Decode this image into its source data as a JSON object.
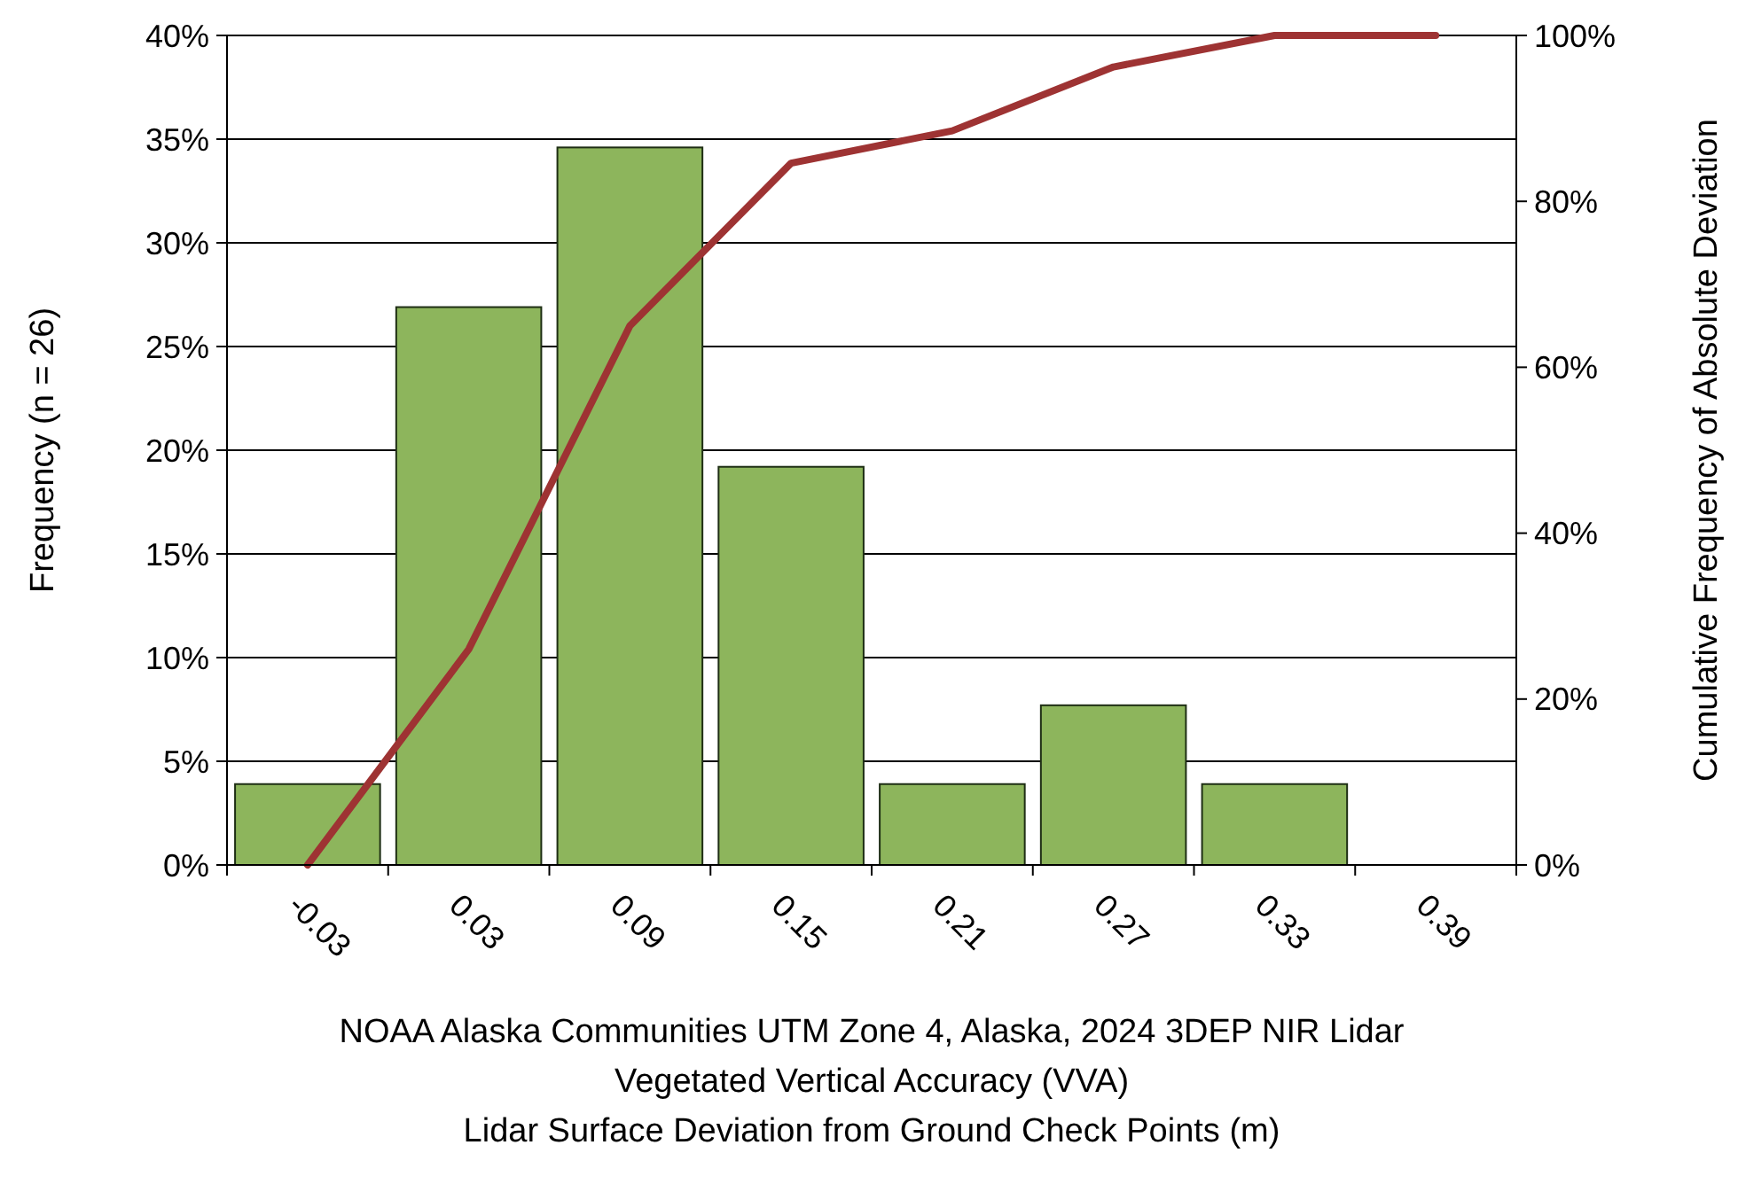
{
  "chart_data": {
    "type": "bar",
    "xlabel": "NOAA Alaska Communities UTM Zone 4, Alaska, 2024 3DEP NIR Lidar\nVegetated Vertical Accuracy (VVA)\nLidar Surface Deviation from Ground Check Points (m)",
    "ylabel": "Frequency (n = 26)",
    "y2label": "Cumulative Frequency of Absolute Deviation",
    "categories": [
      "-0.03",
      "0.03",
      "0.09",
      "0.15",
      "0.21",
      "0.27",
      "0.33",
      "0.39"
    ],
    "series": [
      {
        "color": "#8db55c",
        "values": [
          3.9,
          26.9,
          34.6,
          19.2,
          3.9,
          7.7,
          3.9,
          0
        ]
      },
      {
        "type": "line",
        "axis": "y2",
        "color": "#9e3333",
        "values": [
          0,
          26,
          65,
          84.6,
          88.5,
          96.2,
          100,
          100
        ]
      }
    ],
    "ylim": [
      0,
      40
    ],
    "yticks": [
      {
        "value": 0,
        "label": "0%"
      },
      {
        "value": 5,
        "label": "5%"
      },
      {
        "value": 10,
        "label": "10%"
      },
      {
        "value": 15,
        "label": "15%"
      },
      {
        "value": 20,
        "label": "20%"
      },
      {
        "value": 25,
        "label": "25%"
      },
      {
        "value": 30,
        "label": "30%"
      },
      {
        "value": 35,
        "label": "35%"
      },
      {
        "value": 40,
        "label": "40%"
      }
    ],
    "y2lim": [
      0,
      100
    ],
    "y2ticks": [
      {
        "value": 0,
        "label": "0%"
      },
      {
        "value": 20,
        "label": "20%"
      },
      {
        "value": 40,
        "label": "40%"
      },
      {
        "value": 60,
        "label": "60%"
      },
      {
        "value": 80,
        "label": "80%"
      },
      {
        "value": 100,
        "label": "100%"
      }
    ],
    "grid": "y",
    "marker": "none",
    "line_style": "solid"
  }
}
